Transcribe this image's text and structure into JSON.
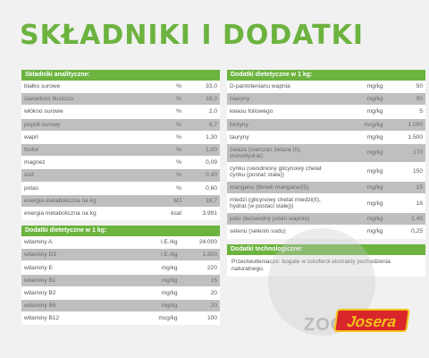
{
  "title": "SKŁADNIKI I DODATKI",
  "left": {
    "analytical": {
      "heading": "Składniki analityczne:",
      "rows": [
        {
          "name": "białko surowe",
          "unit": "%",
          "value": "33,0"
        },
        {
          "name": "zawartość tłuszczu",
          "unit": "%",
          "value": "18,0"
        },
        {
          "name": "włókno surowe",
          "unit": "%",
          "value": "2,0"
        },
        {
          "name": "popiół surowy",
          "unit": "%",
          "value": "6,7"
        },
        {
          "name": "wapń",
          "unit": "%",
          "value": "1,30"
        },
        {
          "name": "fosfor",
          "unit": "%",
          "value": "1,00"
        },
        {
          "name": "magnez",
          "unit": "%",
          "value": "0,09"
        },
        {
          "name": "sód",
          "unit": "%",
          "value": "0,40"
        },
        {
          "name": "potas",
          "unit": "%",
          "value": "0,60"
        },
        {
          "name": "energia metaboliczna na kg",
          "unit": "MJ",
          "value": "16,7"
        },
        {
          "name": "energia metaboliczna na kg",
          "unit": "kcal",
          "value": "3.991"
        }
      ]
    },
    "dietetic": {
      "heading": "Dodatki dietetyczne w 1 kg:",
      "rows": [
        {
          "name": "witaminy A",
          "unit": "I.E./kg",
          "value": "24.000"
        },
        {
          "name": "witaminy D3",
          "unit": "I.E./kg",
          "value": "1.800"
        },
        {
          "name": "witaminy E",
          "unit": "mg/kg",
          "value": "220"
        },
        {
          "name": "witaminy B1",
          "unit": "mg/kg",
          "value": "15"
        },
        {
          "name": "witaminy B2",
          "unit": "mg/kg",
          "value": "20"
        },
        {
          "name": "witaminy B6",
          "unit": "mg/kg",
          "value": "20"
        },
        {
          "name": "witaminy B12",
          "unit": "mcg/kg",
          "value": "100"
        }
      ]
    }
  },
  "right": {
    "dietetic": {
      "heading": "Dodatki dietetyczne w 1 kg:",
      "rows": [
        {
          "name": "D-pantotenianu wapnia",
          "unit": "mg/kg",
          "value": "50"
        },
        {
          "name": "niacyny",
          "unit": "mg/kg",
          "value": "90"
        },
        {
          "name": "kwasu foliowego",
          "unit": "mg/kg",
          "value": "5"
        },
        {
          "name": "biotyny",
          "unit": "mcg/kg",
          "value": "1.000"
        },
        {
          "name": "tauryny",
          "unit": "mg/kg",
          "value": "1.500"
        },
        {
          "name": "żelaza (siarczan żelaza (II), monohydrat)",
          "unit": "mg/kg",
          "value": "170",
          "tall": true
        },
        {
          "name": "cynku (uwodniony glicynowy chelat cynku (postać stała))",
          "unit": "mg/kg",
          "value": "150",
          "tall": true
        },
        {
          "name": "manganu (tlenek manganu(II))",
          "unit": "mg/kg",
          "value": "15"
        },
        {
          "name": "miedzi (glicynowy chelat miedzi(II), hydrat (w postaci stałej))",
          "unit": "mg/kg",
          "value": "18",
          "tall": true
        },
        {
          "name": "jodu (bezwodny jodan wapnia)",
          "unit": "mg/kg",
          "value": "1,40"
        },
        {
          "name": "selenu (selenin sodu)",
          "unit": "mg/kg",
          "value": "0,25"
        }
      ]
    },
    "technological": {
      "heading": "Dodatki technologiczne:",
      "text": "Przeciwutleniacze: bogate w tokoferol ekstrakty pochodzenia naturalnego."
    }
  },
  "watermark": {
    "text": "ZOO"
  },
  "brand": {
    "name": "Josera"
  }
}
